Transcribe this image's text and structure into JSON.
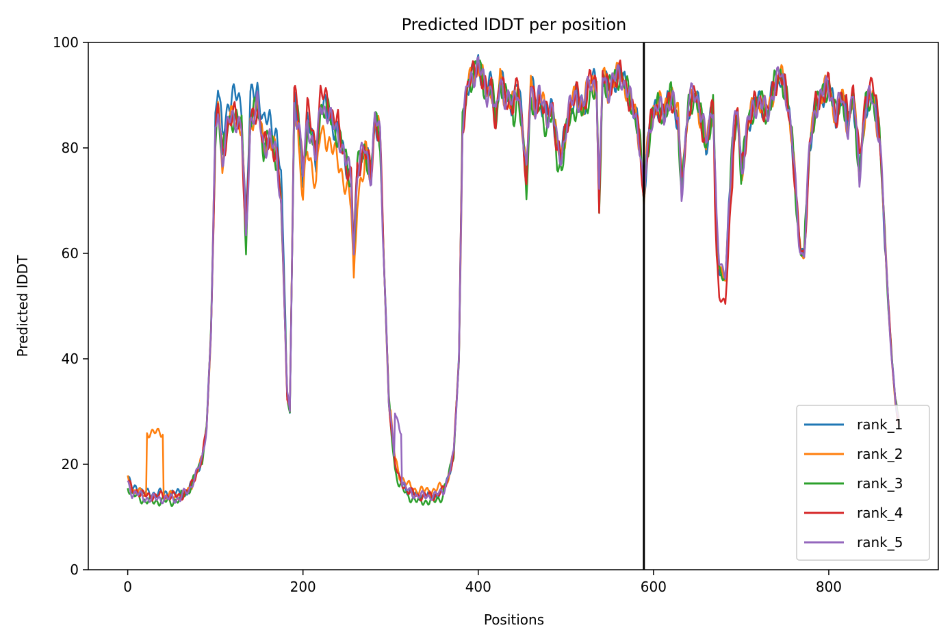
{
  "chart_data": {
    "type": "line",
    "title": "Predicted lDDT per position",
    "xlabel": "Positions",
    "ylabel": "Predicted lDDT",
    "xlim": [
      -45,
      925
    ],
    "ylim": [
      0,
      100
    ],
    "xticks": [
      0,
      200,
      400,
      600,
      800
    ],
    "yticks": [
      0,
      20,
      40,
      60,
      80,
      100
    ],
    "vline_x": 589,
    "vline_color": "#000000",
    "legend_position": "lower right",
    "grid": false,
    "base_x": [
      0,
      5,
      10,
      20,
      30,
      40,
      50,
      60,
      70,
      75,
      80,
      85,
      90,
      95,
      100,
      103,
      108,
      115,
      122,
      130,
      135,
      140,
      148,
      155,
      162,
      170,
      175,
      178,
      182,
      185,
      190,
      195,
      200,
      205,
      210,
      215,
      220,
      228,
      235,
      242,
      248,
      255,
      258,
      262,
      270,
      278,
      282,
      288,
      292,
      298,
      305,
      310,
      320,
      330,
      340,
      350,
      360,
      365,
      372,
      378,
      382,
      388,
      395,
      400,
      405,
      410,
      415,
      420,
      425,
      430,
      440,
      445,
      450,
      455,
      460,
      465,
      470,
      478,
      485,
      490,
      495,
      500,
      505,
      512,
      520,
      528,
      535,
      538,
      542,
      548,
      555,
      562,
      570,
      575,
      580,
      585,
      589,
      592,
      598,
      605,
      612,
      620,
      628,
      632,
      640,
      648,
      655,
      660,
      668,
      672,
      675,
      682,
      690,
      696,
      700,
      708,
      715,
      722,
      730,
      738,
      745,
      752,
      758,
      765,
      768,
      772,
      778,
      785,
      792,
      800,
      808,
      815,
      822,
      828,
      835,
      842,
      850,
      858,
      862,
      868,
      872,
      876,
      880
    ],
    "base_y": [
      17,
      15,
      15,
      14,
      14,
      14,
      14,
      14,
      15,
      17,
      19,
      21,
      27,
      45,
      82,
      88,
      78,
      85,
      86,
      84,
      62,
      85,
      88,
      80,
      82,
      78,
      70,
      55,
      33,
      30,
      88,
      85,
      75,
      85,
      82,
      78,
      88,
      87,
      84,
      82,
      78,
      74,
      60,
      76,
      80,
      75,
      86,
      82,
      60,
      32,
      20,
      17,
      15,
      14,
      14,
      14,
      15,
      17,
      22,
      40,
      84,
      92,
      94,
      96,
      93,
      90,
      92,
      85,
      93,
      90,
      88,
      92,
      85,
      74,
      92,
      88,
      90,
      86,
      88,
      80,
      78,
      84,
      88,
      90,
      88,
      93,
      92,
      70,
      94,
      91,
      93,
      94,
      91,
      88,
      86,
      80,
      70,
      78,
      86,
      88,
      86,
      90,
      85,
      72,
      88,
      90,
      85,
      80,
      88,
      65,
      57,
      55,
      80,
      87,
      75,
      85,
      88,
      89,
      86,
      92,
      94,
      90,
      82,
      65,
      60,
      60,
      80,
      88,
      90,
      92,
      86,
      90,
      84,
      90,
      75,
      88,
      90,
      82,
      70,
      50,
      40,
      32,
      28
    ],
    "series": [
      {
        "name": "rank_1",
        "color": "#1f77b4",
        "offsets": [
          [
            100,
            180,
            4
          ],
          [
            0,
            60,
            0.5
          ],
          [
            400,
            470,
            0.5
          ]
        ]
      },
      {
        "name": "rank_2",
        "color": "#ff7f0e",
        "offsets": [
          [
            22,
            40,
            12
          ],
          [
            195,
            270,
            -5
          ],
          [
            600,
            640,
            1
          ],
          [
            300,
            360,
            1
          ]
        ]
      },
      {
        "name": "rank_3",
        "color": "#2ca02c",
        "offsets": [
          [
            0,
            60,
            -1
          ],
          [
            440,
            540,
            -2
          ],
          [
            300,
            360,
            -1
          ]
        ]
      },
      {
        "name": "rank_4",
        "color": "#d62728",
        "offsets": [
          [
            670,
            690,
            -5
          ],
          [
            190,
            240,
            2
          ],
          [
            820,
            860,
            2
          ]
        ]
      },
      {
        "name": "rank_5",
        "color": "#9467bd",
        "offsets": [
          [
            305,
            312,
            10
          ],
          [
            640,
            700,
            1
          ],
          [
            0,
            60,
            -0.5
          ]
        ]
      }
    ]
  }
}
